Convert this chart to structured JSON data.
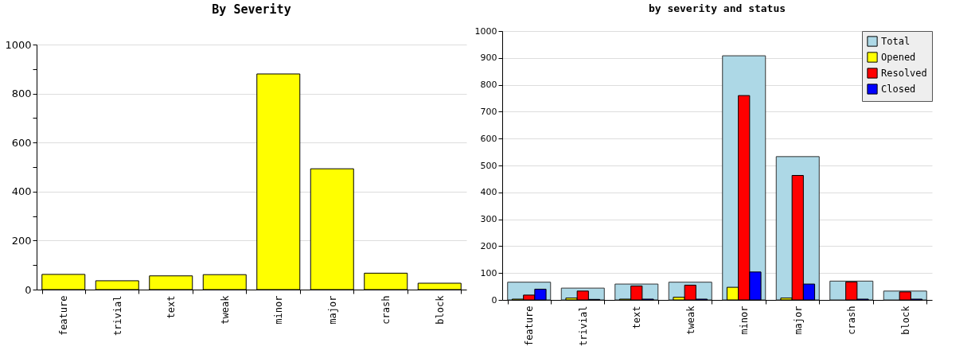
{
  "chart_data": [
    {
      "type": "bar",
      "title": "By Severity",
      "categories": [
        "feature",
        "trivial",
        "text",
        "tweak",
        "minor",
        "major",
        "crash",
        "block"
      ],
      "values": [
        62,
        36,
        56,
        61,
        880,
        493,
        67,
        26
      ],
      "color": "#ffff00",
      "ylim": [
        0,
        1000
      ],
      "yticks": [
        0,
        {
          "value": 100,
          "label": null
        },
        200,
        {
          "value": 300,
          "label": null
        },
        400,
        {
          "value": 500,
          "label": null
        },
        600,
        {
          "value": 700,
          "label": null
        },
        800,
        {
          "value": 900,
          "label": null
        },
        1000
      ],
      "grid": "y"
    },
    {
      "type": "bar",
      "title": "by severity and status",
      "categories": [
        "feature",
        "trivial",
        "text",
        "tweak",
        "minor",
        "major",
        "crash",
        "block"
      ],
      "series": [
        {
          "name": "Total",
          "color": "#add8e6",
          "values": [
            66,
            44,
            59,
            66,
            908,
            533,
            70,
            33
          ]
        },
        {
          "name": "Opened",
          "color": "#ffff00",
          "values": [
            3,
            7,
            3,
            10,
            47,
            7,
            0,
            0
          ]
        },
        {
          "name": "Resolved",
          "color": "#ff0000",
          "values": [
            18,
            33,
            52,
            55,
            760,
            463,
            67,
            30
          ]
        },
        {
          "name": "Closed",
          "color": "#0000ff",
          "values": [
            40,
            2,
            3,
            3,
            104,
            59,
            3,
            3
          ]
        }
      ],
      "ylim": [
        0,
        1000
      ],
      "yticks": [
        0,
        100,
        200,
        300,
        400,
        500,
        600,
        700,
        800,
        900,
        1000
      ],
      "grid": "y",
      "legend": "top right"
    }
  ]
}
